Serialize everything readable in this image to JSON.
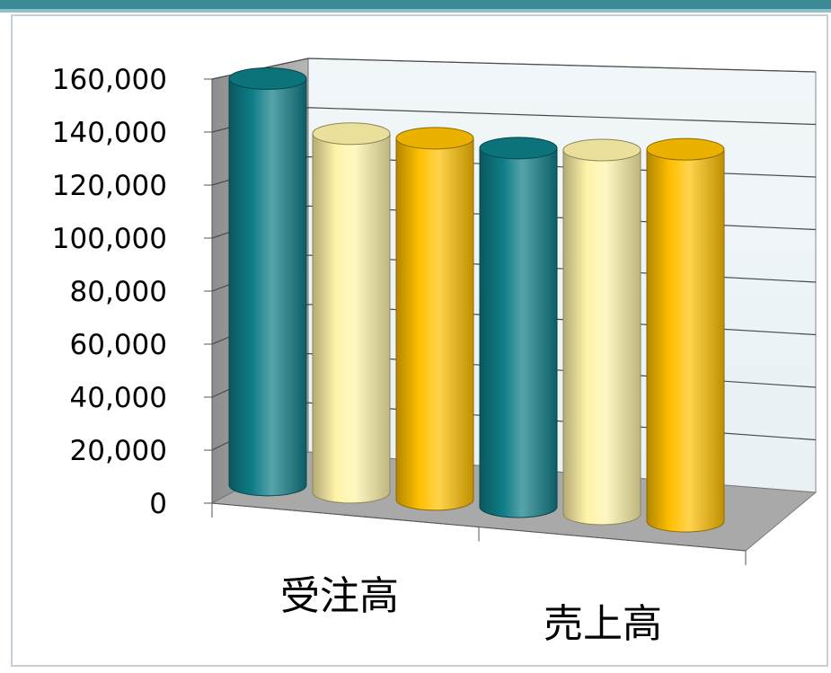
{
  "chart_data": {
    "type": "bar",
    "style": "3d-cylinder",
    "categories": [
      "受注高",
      "売上高"
    ],
    "series": [
      {
        "values": [
          153000,
          135000
        ],
        "color": "#0E7D86"
      },
      {
        "values": [
          135000,
          137000
        ],
        "color": "#FFF3A8"
      },
      {
        "values": [
          136000,
          140000
        ],
        "color": "#FFC000"
      }
    ],
    "yticks": [
      "0",
      "20,000",
      "40,000",
      "60,000",
      "80,000",
      "100,000",
      "120,000",
      "140,000",
      "160,000"
    ],
    "ylim": [
      0,
      160000
    ],
    "grid": true,
    "legend": "none",
    "title": "",
    "xlabel": "",
    "ylabel": ""
  },
  "colors": {
    "frame_border": "#C6CFD6",
    "top_band": "#3C8A96",
    "back_wall": "#E9F1F5",
    "side_wall": "#9E9E9E",
    "floor": "#A9A9A9",
    "grid_line": "#4A4A4A"
  }
}
